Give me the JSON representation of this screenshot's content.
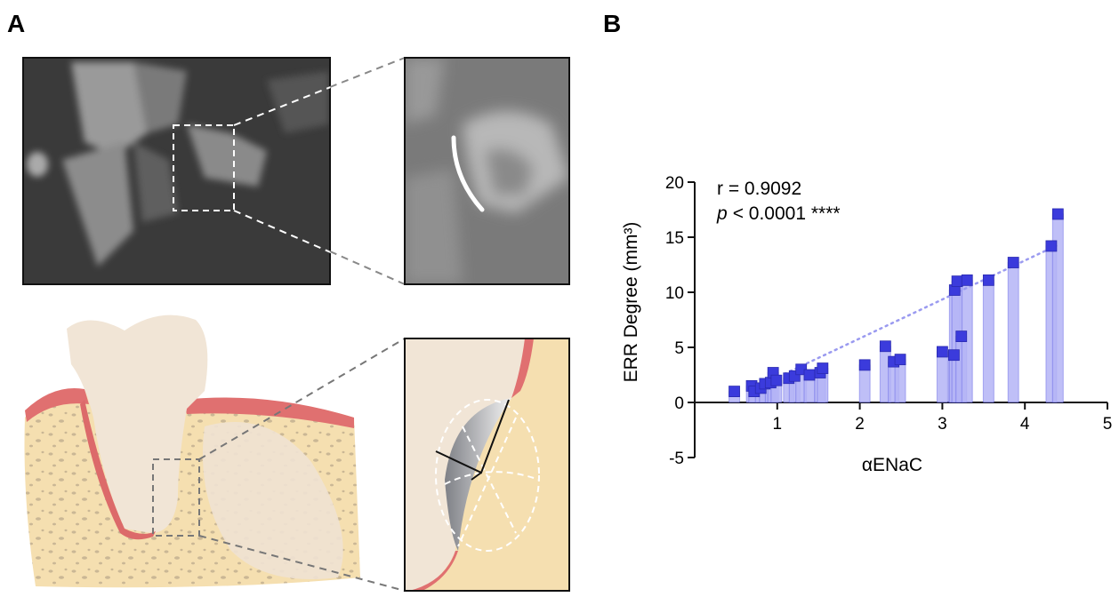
{
  "panel_labels": [
    "A",
    "B"
  ],
  "chart_data": {
    "type": "scatter",
    "x_label": "αENaC",
    "y_label": "ERR Degree (mm³)",
    "annotation_r": "r = 0.9092",
    "annotation_p_symbol": "p",
    "annotation_p_text": "< 0.0001 ****",
    "x": [
      0.48,
      0.69,
      0.72,
      0.8,
      0.85,
      0.92,
      0.95,
      0.99,
      1.14,
      1.21,
      1.29,
      1.39,
      1.52,
      1.55,
      2.06,
      2.31,
      2.41,
      2.49,
      3.0,
      3.14,
      3.15,
      3.18,
      3.23,
      3.3,
      3.56,
      3.86,
      4.32,
      4.4
    ],
    "values": [
      1.0,
      1.5,
      1.0,
      1.3,
      1.7,
      1.8,
      2.7,
      2.0,
      2.2,
      2.4,
      3.0,
      2.5,
      2.7,
      3.1,
      3.4,
      5.1,
      3.7,
      3.9,
      4.6,
      4.3,
      10.2,
      11.0,
      6.0,
      11.1,
      11.1,
      12.7,
      14.2,
      17.1
    ],
    "color": "#3b3bdc",
    "bar_color": "#b4b4f6",
    "trend": {
      "x": [
        0.95,
        4.4
      ],
      "values": [
        2.1,
        14.3
      ],
      "color": "#9a9af0"
    },
    "xlim": [
      0,
      5
    ],
    "ylim": [
      -5,
      20
    ],
    "xticks": [
      1,
      2,
      3,
      4,
      5
    ],
    "yticks": [
      -5,
      0,
      5,
      10,
      15,
      20
    ]
  }
}
